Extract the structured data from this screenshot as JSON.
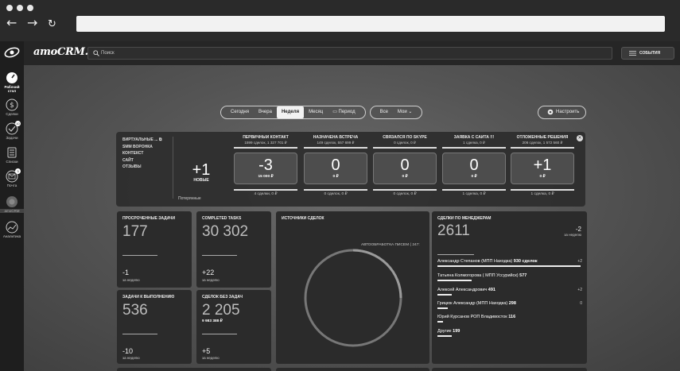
{
  "sidebar": {
    "items": [
      {
        "label": "Рабочий стол",
        "icon": "speedometer-icon"
      },
      {
        "label": "Сделки",
        "icon": "dollar-icon"
      },
      {
        "label": "Задачи",
        "icon": "check-circle-icon",
        "badge": "10"
      },
      {
        "label": "Списки",
        "icon": "list-icon"
      },
      {
        "label": "Почта",
        "icon": "mail-icon",
        "badge": "3"
      },
      {
        "label": "amoCRM",
        "icon": "circle-icon"
      },
      {
        "label": "Аналитика",
        "icon": "analytics-icon"
      }
    ]
  },
  "header": {
    "brand": "amoCRM.",
    "search_placeholder": "Поиск",
    "events_label": "СОБЫТИЯ"
  },
  "filters": {
    "periods": [
      "Сегодня",
      "Вчера",
      "Неделя",
      "Месяц",
      "Период"
    ],
    "active_period": "Неделя",
    "scope_all": "Все",
    "scope_mine": "Мои",
    "setup_label": "Настроить"
  },
  "pipeline": {
    "sources": [
      "ВИРТУАЛЬНЫЕ ...",
      "SMM ВОРОНКА",
      "КОНТЕКСТ",
      "САЙТ",
      "ОТЗЫВЫ"
    ],
    "new": {
      "value": "+1",
      "label": "НОВЫЕ"
    },
    "lost_label": "Потерянные",
    "stages": [
      {
        "name": "ПЕРВИЧНЫЙ КОНТАКТ",
        "sub": "1599 сделок, 1 327 701 ₽",
        "value": "-3",
        "money": "15 000 ₽",
        "foot": "4 сделки, 0 ₽"
      },
      {
        "name": "НАЗНАЧЕНА ВСТРЕЧА",
        "sub": "149 сделок, 557 699 ₽",
        "value": "0",
        "money": "0 ₽",
        "foot": "0 сделок, 0 ₽"
      },
      {
        "name": "СВЯЗАЛСЯ ПО SKYPE",
        "sub": "0 сделок, 0 ₽",
        "value": "0",
        "money": "0 ₽",
        "foot": "0 сделок, 0 ₽"
      },
      {
        "name": "ЗАЯВКА С САЙТА !!!",
        "sub": "1 сделка, 0 ₽",
        "value": "0",
        "money": "0 ₽",
        "foot": "1 сделка, 0 ₽"
      },
      {
        "name": "ОТЛОЖЕННЫЕ РЕШЕНИЯ",
        "sub": "206 сделок, 1 572 560 ₽",
        "value": "+1",
        "money": "0 ₽",
        "foot": "1 сделка, 0 ₽"
      }
    ]
  },
  "widgets": {
    "overdue": {
      "title": "ПРОСРОЧЕННЫЕ ЗАДАЧИ",
      "value": "177",
      "delta": "-1",
      "week": "за неделю"
    },
    "completed": {
      "title": "COMPLETED TASKS",
      "value": "30 302",
      "delta": "+22",
      "week": "за неделю"
    },
    "sources": {
      "title": "ИСТОЧНИКИ СДЕЛОК",
      "donut_label": "АВТООБРАБОТКА ПИСЕМ ( 247:"
    },
    "managers": {
      "title": "СДЕЛКИ ПО МЕНЕДЖЕРАМ",
      "value": "2611",
      "delta": "-2",
      "week": "за неделю",
      "rows": [
        {
          "name": "Александр Степанов (МПП Находка)",
          "count": "930 сделок",
          "delta": "+2",
          "fill": 1.0
        },
        {
          "name": "Татьяна Колмогорова ( МПП Уссурийск)",
          "count": "577",
          "delta": "",
          "fill": 0.24
        },
        {
          "name": "Алексей Александрович",
          "count": "491",
          "delta": "+2",
          "fill": 0.1
        },
        {
          "name": "Грицюк Александр (МПП Находка)",
          "count": "298",
          "delta": "0",
          "fill": 0.07
        },
        {
          "name": "Юрий Курсанов РОП Владивосток",
          "count": "116",
          "delta": "",
          "fill": 0.04
        },
        {
          "name": "Другие",
          "count": "199",
          "delta": "",
          "fill": 0.1
        }
      ]
    },
    "in_progress": {
      "title": "ЗАДАЧИ К ВЫПОЛНЕНИЮ",
      "value": "536",
      "delta": "-10",
      "week": "за неделю"
    },
    "no_tasks": {
      "title": "СДЕЛОК БЕЗ ЗАДАЧ",
      "value": "2 205",
      "sub": "9 983 388 ₽",
      "delta": "+5",
      "week": "за неделю"
    }
  }
}
